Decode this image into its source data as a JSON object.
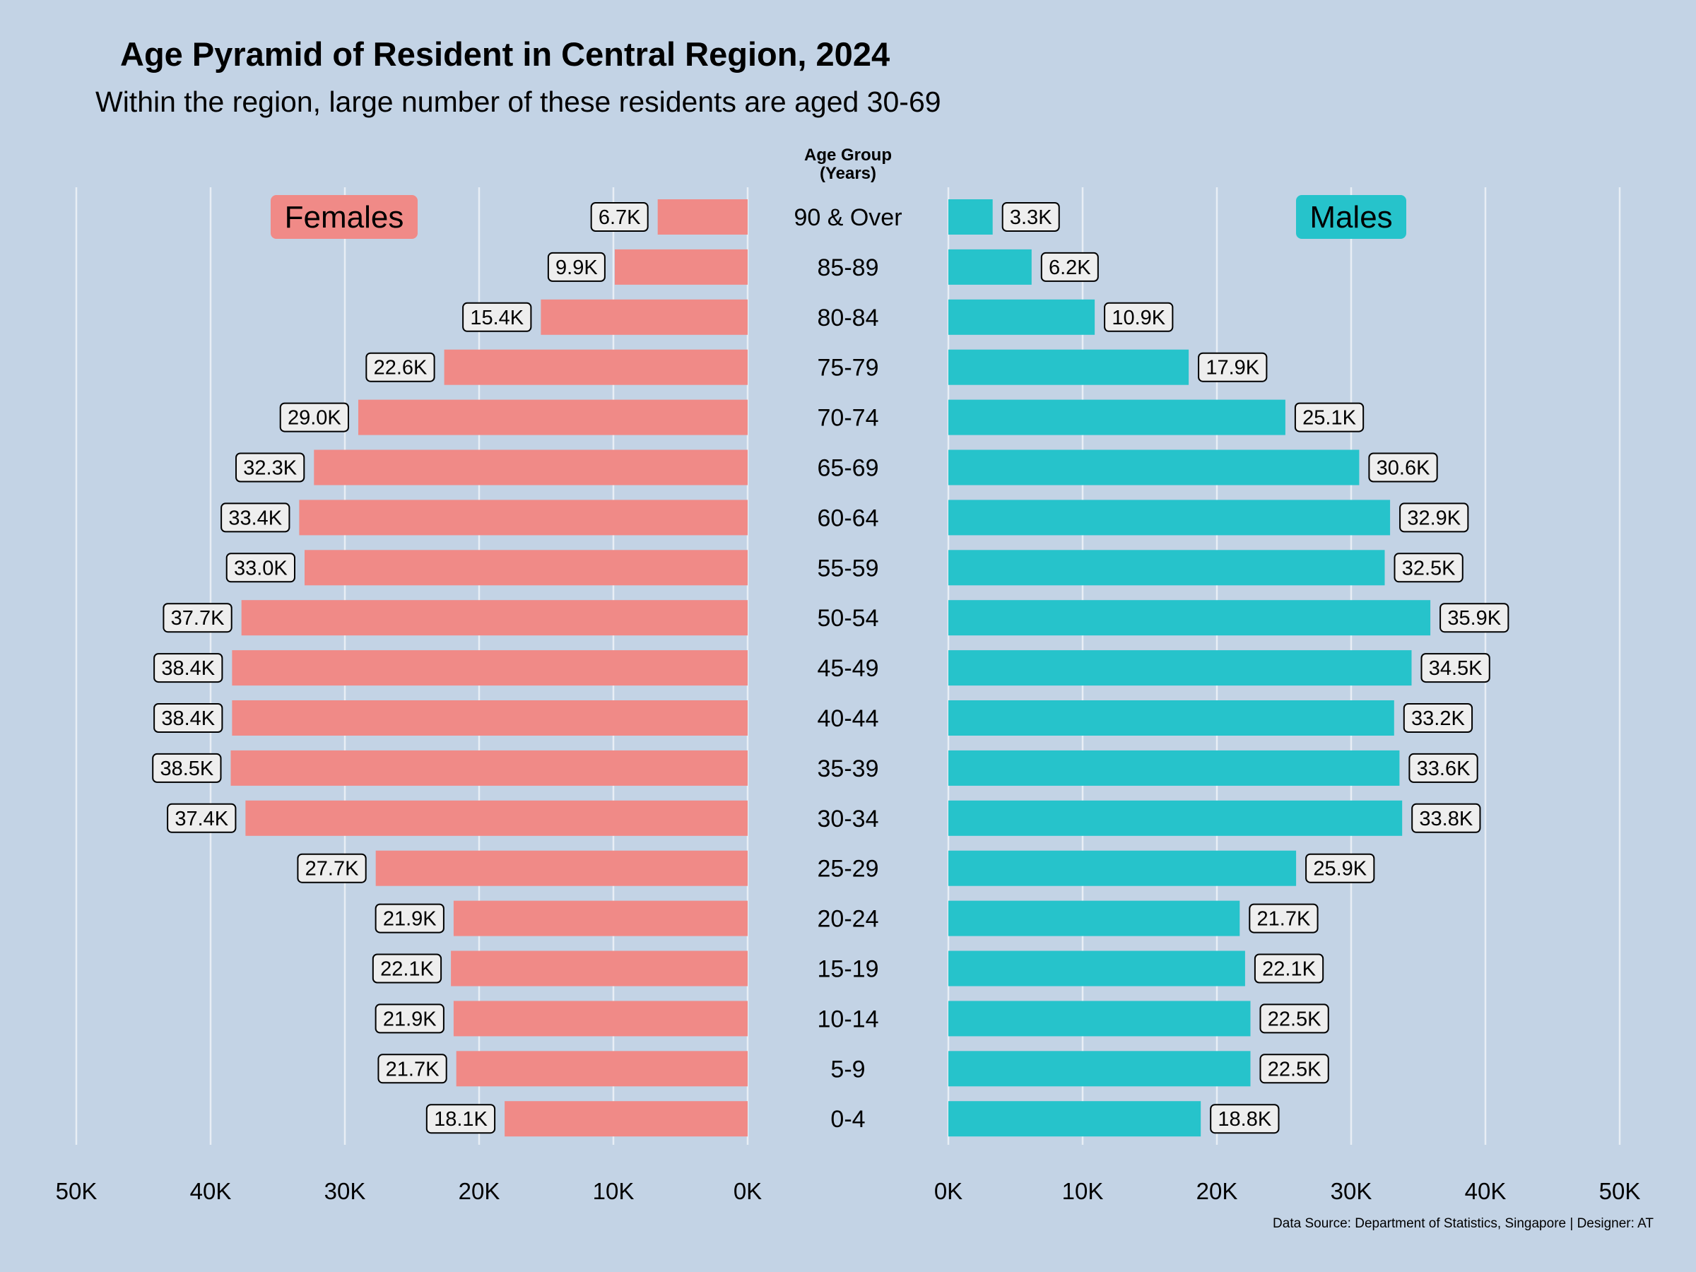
{
  "colors": {
    "background": "#c3d3e5",
    "females": "#f08a87",
    "males": "#26c3cb",
    "grid": "#e8eef5",
    "label_box": "#eeeeee",
    "text": "#000000"
  },
  "chart_data": {
    "type": "bar",
    "title": "Age Pyramid of Resident in Central Region, 2024",
    "subtitle": "Within the region, large number of these residents are aged 30-69",
    "caption": "Data Source: Department of Statistics, Singapore | Designer: AT",
    "center_axis_title_line1": "Age Group",
    "center_axis_title_line2": "(Years)",
    "categories": [
      "90 & Over",
      "85-89",
      "80-84",
      "75-79",
      "70-74",
      "65-69",
      "60-64",
      "55-59",
      "50-54",
      "45-49",
      "40-44",
      "35-39",
      "30-34",
      "25-29",
      "20-24",
      "15-19",
      "10-14",
      "5-9",
      "0-4"
    ],
    "series": [
      {
        "name": "Females",
        "values": [
          6.7,
          9.9,
          15.4,
          22.6,
          29.0,
          32.3,
          33.4,
          33.0,
          37.7,
          38.4,
          38.4,
          38.5,
          37.4,
          27.7,
          21.9,
          22.1,
          21.9,
          21.7,
          18.1
        ],
        "labels": [
          "6.7K",
          "9.9K",
          "15.4K",
          "22.6K",
          "29.0K",
          "32.3K",
          "33.4K",
          "33.0K",
          "37.7K",
          "38.4K",
          "38.4K",
          "38.5K",
          "37.4K",
          "27.7K",
          "21.9K",
          "22.1K",
          "21.9K",
          "21.7K",
          "18.1K"
        ]
      },
      {
        "name": "Males",
        "values": [
          3.3,
          6.2,
          10.9,
          17.9,
          25.1,
          30.6,
          32.9,
          32.5,
          35.9,
          34.5,
          33.2,
          33.6,
          33.8,
          25.9,
          21.7,
          22.1,
          22.5,
          22.5,
          18.8
        ],
        "labels": [
          "3.3K",
          "6.2K",
          "10.9K",
          "17.9K",
          "25.1K",
          "30.6K",
          "32.9K",
          "32.5K",
          "35.9K",
          "34.5K",
          "33.2K",
          "33.6K",
          "33.8K",
          "25.9K",
          "21.7K",
          "22.1K",
          "22.5K",
          "22.5K",
          "18.8K"
        ]
      }
    ],
    "units": "thousands",
    "xlim": [
      0,
      50
    ],
    "xticks": [
      0,
      10,
      20,
      30,
      40,
      50
    ],
    "xtick_labels": [
      "0K",
      "10K",
      "20K",
      "30K",
      "40K",
      "50K"
    ],
    "grid": true,
    "legend": "inside-top"
  }
}
